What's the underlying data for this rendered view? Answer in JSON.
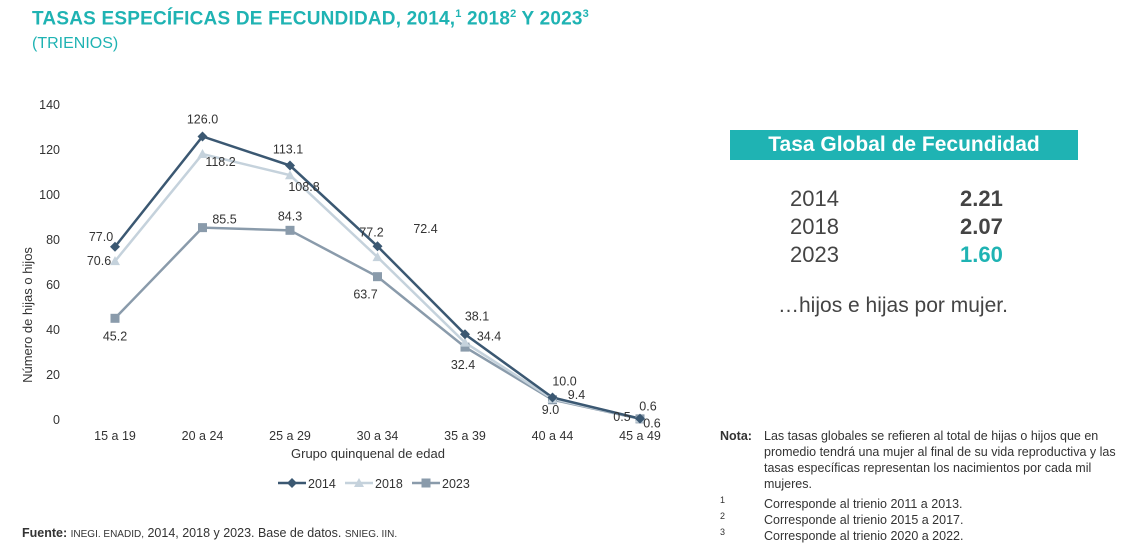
{
  "header": {
    "title": "TASAS ESPECÍFICAS DE FECUNDIDAD,  2014,",
    "sup1": "1",
    "title_2018": " 2018",
    "sup2": "2",
    "title_2023": " Y 2023",
    "sup3": "3",
    "subtitle": "(TRIENIOS)"
  },
  "chart_data": {
    "type": "line",
    "categories": [
      "15 a 19",
      "20 a 24",
      "25 a 29",
      "30 a 34",
      "35 a 39",
      "40 a 44",
      "45 a 49"
    ],
    "series": [
      {
        "name": "2014",
        "values": [
          77.0,
          126.0,
          113.1,
          77.2,
          38.1,
          10.0,
          0.6
        ],
        "color": "#3b5872",
        "marker": "diamond"
      },
      {
        "name": "2018",
        "values": [
          70.6,
          118.2,
          108.8,
          72.4,
          34.4,
          9.4,
          0.6
        ],
        "color": "#c5d2dc",
        "marker": "triangle"
      },
      {
        "name": "2023",
        "values": [
          45.2,
          85.5,
          84.3,
          63.7,
          32.4,
          9.0,
          0.5
        ],
        "color": "#8a9bab",
        "marker": "square"
      }
    ],
    "data_labels": [
      [
        "77.0",
        "126.0",
        "113.1",
        "77.2",
        "38.1",
        "10.0",
        "0.6"
      ],
      [
        "70.6",
        "118.2",
        "108.8",
        "72.4",
        "34.4",
        "9.4",
        "0.6"
      ],
      [
        "45.2",
        "85.5",
        "84.3",
        "63.7",
        "32.4",
        "9.0",
        "0.5"
      ]
    ],
    "ylim": [
      0,
      140
    ],
    "yticks": [
      "0",
      "20",
      "40",
      "60",
      "80",
      "100",
      "120",
      "140"
    ],
    "xlabel": "Grupo quinquenal de edad",
    "ylabel": "Número de hijas o hijos",
    "legend_position": "bottom"
  },
  "tgf": {
    "header": "Tasa Global de Fecundidad",
    "rows": [
      {
        "year": "2014",
        "value": "2.21"
      },
      {
        "year": "2018",
        "value": "2.07"
      },
      {
        "year": "2023",
        "value": "1.60"
      }
    ],
    "caption": "…hijos e hijas por mujer."
  },
  "notes": {
    "label": "Nota:",
    "text": "Las tasas globales se refieren al total de hijas o hijos que en promedio tendrá una mujer al final de su vida reproductiva      y las tasas específicas representan los nacimientos por cada mil mujeres.",
    "footnotes": [
      {
        "num": "1",
        "text": "Corresponde al trienio 2011 a 2013."
      },
      {
        "num": "2",
        "text": "Corresponde al trienio 2015 a 2017."
      },
      {
        "num": "3",
        "text": "Corresponde al trienio 2020 a 2022."
      }
    ]
  },
  "source": {
    "label": "Fuente:",
    "org": "INEGI. ENADID,",
    "years": " 2014, 2018 y 2023. Base de datos.",
    "tail": "SNIEG. IIN."
  },
  "colors": {
    "accent": "#1fb3b3"
  }
}
